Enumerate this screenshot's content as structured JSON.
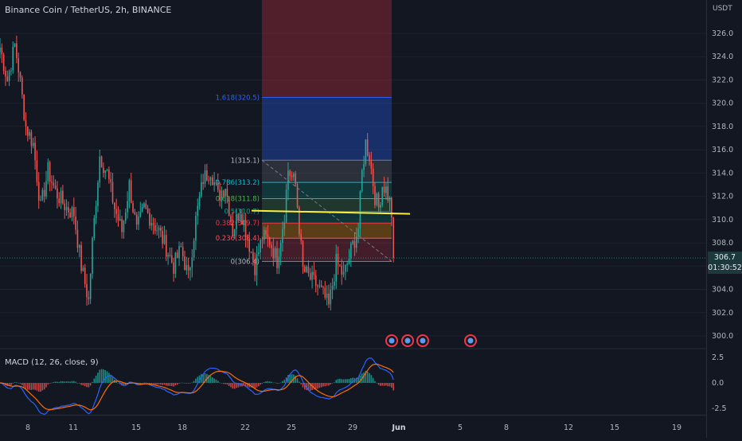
{
  "header": {
    "title": "Binance Coin / TetherUS, 2h, BINANCE",
    "currency": "USDT"
  },
  "price_tag": {
    "price": "306.7",
    "countdown": "01:30:52"
  },
  "macd": {
    "title": "MACD (12, 26, close, 9)"
  },
  "colors": {
    "up": "#26a69a",
    "down": "#ef5350",
    "macd": "#2962ff",
    "signal": "#ff6d00",
    "trendline": "#ffeb3b"
  },
  "chart_data": [
    {
      "type": "candlestick",
      "y_axis": {
        "ticks": [
          "326.0",
          "324.0",
          "322.0",
          "320.0",
          "318.0",
          "316.0",
          "314.0",
          "312.0",
          "310.0",
          "308.0",
          "306.0",
          "304.0",
          "302.0",
          "300.0"
        ],
        "range": [
          298.8,
          326.8
        ]
      },
      "x_axis": {
        "ticks": [
          "8",
          "11",
          "15",
          "18",
          "22",
          "25",
          "29",
          "Jun",
          "5",
          "8",
          "12",
          "15",
          "19"
        ]
      },
      "last_price": 306.7,
      "close_path": [
        [
          0,
          324.8
        ],
        [
          4,
          322
        ],
        [
          8,
          325
        ],
        [
          10,
          323
        ],
        [
          14,
          318
        ],
        [
          18,
          316.5
        ],
        [
          22,
          311
        ],
        [
          26,
          314.2
        ],
        [
          30,
          312.4
        ],
        [
          36,
          311
        ],
        [
          40,
          310.5
        ],
        [
          44,
          306
        ],
        [
          48,
          303
        ],
        [
          50,
          308
        ],
        [
          54,
          315.5
        ],
        [
          58,
          314
        ],
        [
          62,
          311
        ],
        [
          66,
          309
        ],
        [
          70,
          313
        ],
        [
          74,
          309
        ],
        [
          78,
          311
        ],
        [
          82,
          310
        ],
        [
          86,
          309
        ],
        [
          90,
          307.6
        ],
        [
          94,
          306
        ],
        [
          98,
          307.5
        ],
        [
          102,
          305
        ],
        [
          106,
          310
        ],
        [
          110,
          313.5
        ],
        [
          114,
          314.3
        ],
        [
          118,
          312
        ],
        [
          122,
          313
        ],
        [
          126,
          309
        ],
        [
          130,
          311
        ],
        [
          134,
          308.5
        ],
        [
          138,
          306
        ],
        [
          142,
          308.5
        ],
        [
          146,
          308.2
        ],
        [
          150,
          306.5
        ],
        [
          154,
          310.5
        ],
        [
          156,
          314.3
        ],
        [
          158,
          313.6
        ],
        [
          160,
          313
        ],
        [
          164,
          305.7
        ],
        [
          168,
          304.9
        ],
        [
          172,
          304.3
        ],
        [
          176,
          303.2
        ],
        [
          178,
          302.5
        ],
        [
          182,
          306.3
        ],
        [
          184,
          305.8
        ],
        [
          186,
          305.1
        ],
        [
          188,
          306.2
        ],
        [
          190,
          307.3
        ],
        [
          192,
          308.3
        ],
        [
          194,
          309.3
        ],
        [
          196,
          314
        ],
        [
          198,
          316.6
        ],
        [
          200,
          315.5
        ],
        [
          203,
          312
        ],
        [
          205,
          311
        ],
        [
          207,
          313
        ],
        [
          209,
          312.6
        ],
        [
          211,
          311.5
        ],
        [
          212,
          310.5
        ],
        [
          213,
          306.7
        ]
      ],
      "fibonacci": {
        "levels": [
          {
            "ratio": "1.618",
            "price": 320.5,
            "label": "1.618(320.5)"
          },
          {
            "ratio": "1",
            "price": 315.1,
            "label": "1(315.1)"
          },
          {
            "ratio": "0.786",
            "price": 313.2,
            "label": "0.786(313.2)"
          },
          {
            "ratio": "0.618",
            "price": 311.8,
            "label": "0.618(311.8)"
          },
          {
            "ratio": "0.5",
            "price": 310.7,
            "label": "0.5(310.7)"
          },
          {
            "ratio": "0.382",
            "price": 309.7,
            "label": "0.382(309.7)"
          },
          {
            "ratio": "0.236",
            "price": 308.4,
            "label": "0.236(308.4)"
          },
          {
            "ratio": "0",
            "price": 306.4,
            "label": "0(306.4)"
          }
        ]
      },
      "trendline_price": 310.7
    },
    {
      "type": "line",
      "name": "MACD (12, 26, close, 9)",
      "y_axis": {
        "ticks": [
          "2.5",
          "0.0",
          "-2.5"
        ],
        "range": [
          -3.2,
          3.2
        ]
      }
    }
  ]
}
